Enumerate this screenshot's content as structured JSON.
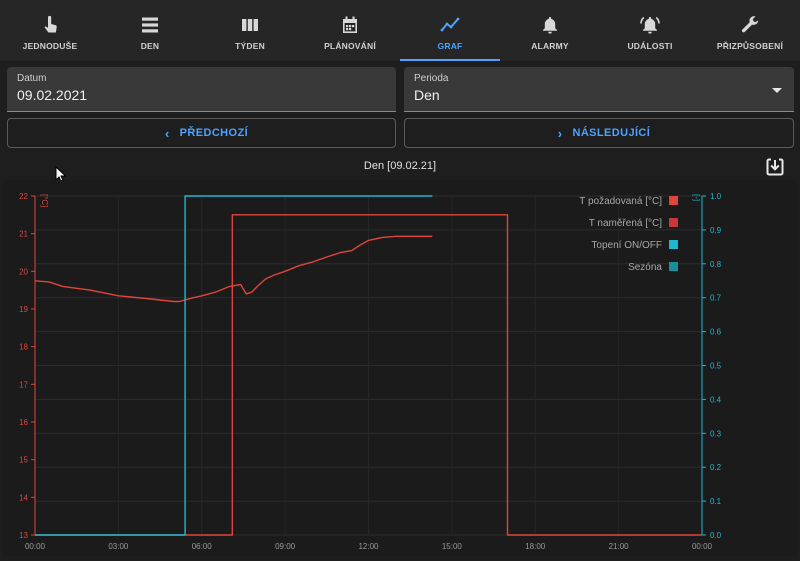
{
  "tabs": [
    {
      "label": "JEDNODUŠE",
      "icon": "touch-icon",
      "active": false
    },
    {
      "label": "DEN",
      "icon": "list-icon",
      "active": false
    },
    {
      "label": "TÝDEN",
      "icon": "columns-icon",
      "active": false
    },
    {
      "label": "PLÁNOVÁNÍ",
      "icon": "calendar-icon",
      "active": false
    },
    {
      "label": "GRAF",
      "icon": "chart-line-icon",
      "active": true
    },
    {
      "label": "ALARMY",
      "icon": "bell-icon",
      "active": false
    },
    {
      "label": "UDÁLOSTI",
      "icon": "bell-ring-icon",
      "active": false
    },
    {
      "label": "PŘIZPŮSOBENÍ",
      "icon": "wrench-icon",
      "active": false
    }
  ],
  "datum": {
    "label": "Datum",
    "value": "09.02.2021"
  },
  "perioda": {
    "label": "Perioda",
    "value": "Den"
  },
  "nav": {
    "prev_label": "PŘEDCHOZÍ",
    "next_label": "NÁSLEDUJÍCÍ"
  },
  "chart_title": "Den [09.02.21]",
  "colors": {
    "accent": "#4da3ff",
    "temp": "#e0443a",
    "cyan": "#1fb8d0",
    "sezona": "#1a8f9c"
  },
  "chart_data": {
    "type": "line",
    "x_ticks": [
      "00:00",
      "03:00",
      "06:00",
      "09:00",
      "12:00",
      "15:00",
      "18:00",
      "21:00",
      "00:00"
    ],
    "y_left": {
      "label": "[°C]",
      "range": [
        13,
        22
      ],
      "ticks": [
        13,
        14,
        15,
        16,
        17,
        18,
        19,
        20,
        21,
        22
      ]
    },
    "y_right": {
      "label": "[-]",
      "range": [
        0,
        1
      ],
      "ticks": [
        "0.0",
        "0.1",
        "0.2",
        "0.3",
        "0.4",
        "0.5",
        "0.6",
        "0.7",
        "0.8",
        "0.9",
        "1.0"
      ]
    },
    "legend": [
      {
        "name": "T požadovaná [°C]",
        "color": "#e0443a"
      },
      {
        "name": "T naměřená [°C]",
        "color": "#c8373a"
      },
      {
        "name": "Topení ON/OFF",
        "color": "#1fb8d0"
      },
      {
        "name": "Sezóna",
        "color": "#1a8f9c"
      }
    ],
    "series": [
      {
        "name": "T požadovaná [°C]",
        "axis": "left",
        "step": true,
        "x": [
          0,
          7.1,
          7.1,
          17.0,
          17.0,
          24
        ],
        "y": [
          13,
          13,
          21.5,
          21.5,
          13,
          13
        ]
      },
      {
        "name": "T naměřená [°C]",
        "axis": "left",
        "x": [
          0,
          0.5,
          1,
          2,
          3,
          4,
          5,
          5.2,
          5.7,
          6,
          6.5,
          7,
          7.4,
          7.6,
          7.8,
          8,
          8.3,
          8.6,
          9,
          9.5,
          10,
          10.5,
          11,
          11.4,
          11.7,
          12,
          12.5,
          13,
          13.5,
          14,
          14.3
        ],
        "y": [
          19.75,
          19.72,
          19.6,
          19.5,
          19.35,
          19.28,
          19.2,
          19.2,
          19.3,
          19.35,
          19.45,
          19.6,
          19.65,
          19.4,
          19.45,
          19.6,
          19.8,
          19.9,
          20.0,
          20.15,
          20.25,
          20.38,
          20.5,
          20.55,
          20.7,
          20.82,
          20.9,
          20.93,
          20.93,
          20.93,
          20.93
        ]
      },
      {
        "name": "Topení ON/OFF",
        "axis": "right",
        "step": true,
        "x": [
          0,
          5.4,
          5.4,
          14.3
        ],
        "y": [
          0,
          0,
          1,
          1
        ]
      }
    ]
  }
}
